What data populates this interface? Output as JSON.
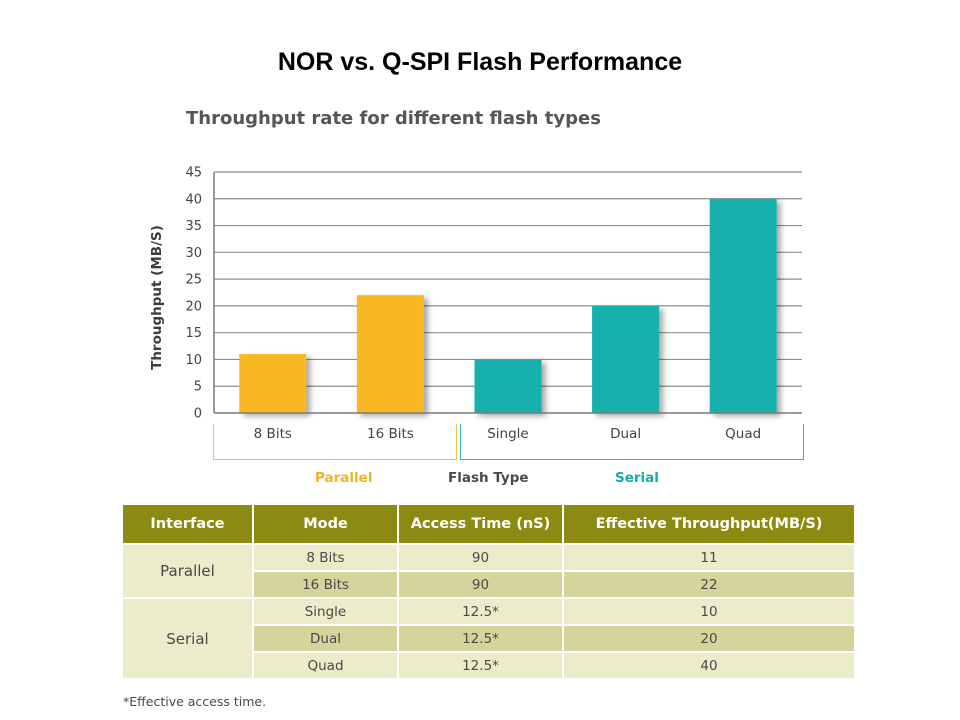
{
  "slide": {
    "title": "NOR vs. Q-SPI Flash Performance"
  },
  "chart_data": {
    "type": "bar",
    "title": "Throughput rate for different flash types",
    "ylabel": "Throughput (MB/S)",
    "xlabel": "Flash Type",
    "ylim": [
      0,
      45
    ],
    "yticks": [
      0,
      5,
      10,
      15,
      20,
      25,
      30,
      35,
      40,
      45
    ],
    "grid": true,
    "categories": [
      "8 Bits",
      "16 Bits",
      "Single",
      "Dual",
      "Quad"
    ],
    "values": [
      11,
      22,
      10,
      20,
      40
    ],
    "groups": [
      {
        "name": "Parallel",
        "categories": [
          "8 Bits",
          "16 Bits"
        ],
        "color": "#f8b824"
      },
      {
        "name": "Serial",
        "categories": [
          "Single",
          "Dual",
          "Quad"
        ],
        "color": "#14b0ad"
      }
    ]
  },
  "table": {
    "headers": [
      "Interface",
      "Mode",
      "Access Time (nS)",
      "Effective Throughput(MB/S)"
    ],
    "parallel": {
      "label": "Parallel",
      "rows": [
        {
          "mode": "8 Bits",
          "access": "90",
          "throughput": "11"
        },
        {
          "mode": "16 Bits",
          "access": "90",
          "throughput": "22"
        }
      ]
    },
    "serial": {
      "label": "Serial",
      "rows": [
        {
          "mode": "Single",
          "access": "12.5*",
          "throughput": "10"
        },
        {
          "mode": "Dual",
          "access": "12.5*",
          "throughput": "20"
        },
        {
          "mode": "Quad",
          "access": "12.5*",
          "throughput": "40"
        }
      ]
    }
  },
  "footnote": "*Effective access time."
}
